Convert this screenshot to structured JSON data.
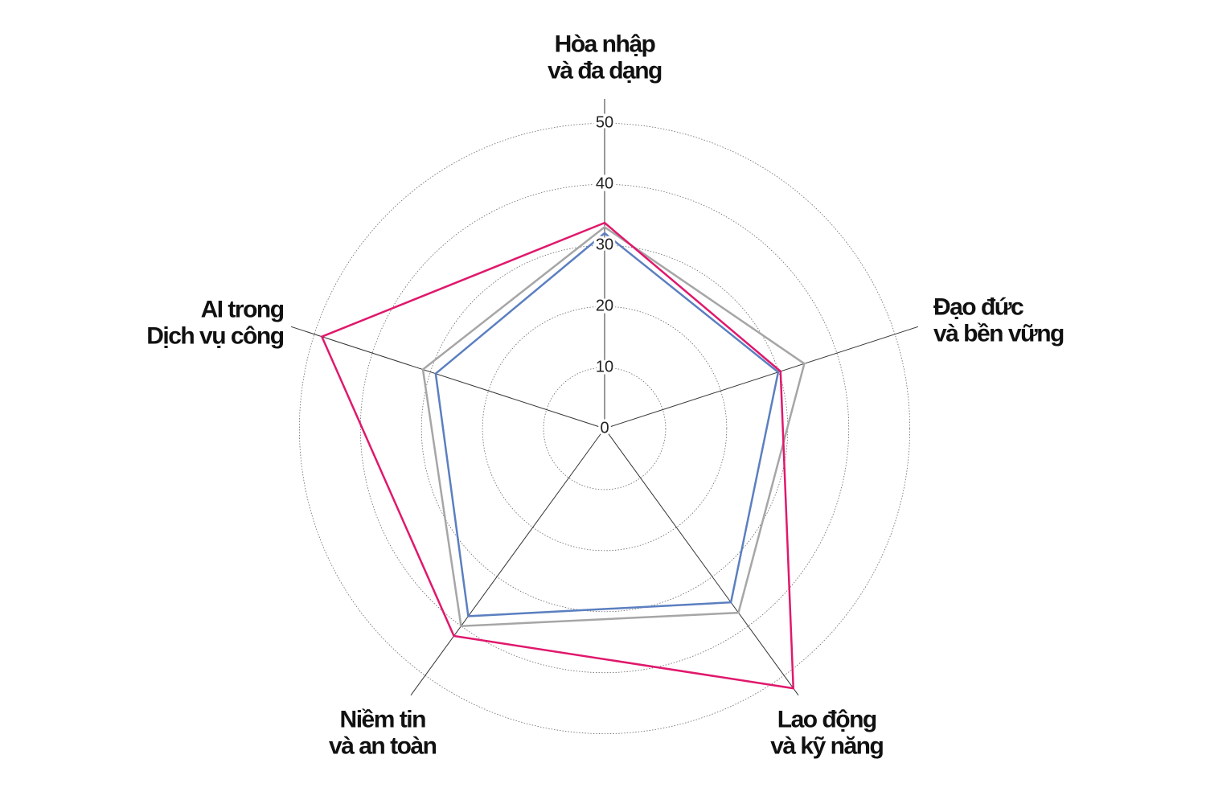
{
  "chart_data": {
    "type": "radar",
    "categories": [
      [
        "Hòa nhập",
        "và đa dạng"
      ],
      [
        "Đạo đức",
        "và bền vững"
      ],
      [
        "Lao động",
        "và kỹ năng"
      ],
      [
        "Niềm tin",
        "và an toàn"
      ],
      [
        "AI trong",
        "Dịch vụ công"
      ]
    ],
    "series": [
      {
        "color": "#a6a6a6",
        "values": [
          33,
          34.4,
          37.3,
          40,
          31.3
        ]
      },
      {
        "color": "#5b7fc0",
        "values": [
          32,
          29.9,
          35.2,
          38,
          29.1
        ]
      },
      {
        "color": "#e0186c",
        "values": [
          33.7,
          30.3,
          52.6,
          42,
          48.7
        ]
      }
    ],
    "rlim": [
      0,
      54
    ],
    "rticks": [
      0,
      10,
      20,
      30,
      40,
      50
    ],
    "grid": true
  }
}
